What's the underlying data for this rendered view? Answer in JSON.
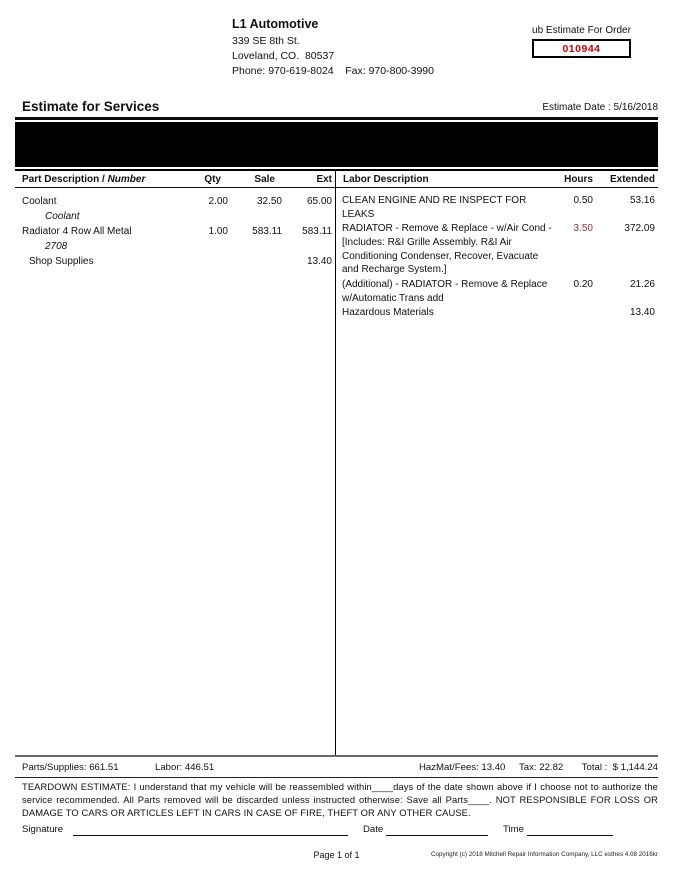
{
  "shop": {
    "name": "L1 Automotive",
    "address_line1": "339 SE 8th St.",
    "address_line2": "Loveland, CO.  80537",
    "phone_fax": "Phone: 970-619-8024    Fax: 970-800-3990"
  },
  "order_box": {
    "label": "ub Estimate For Order",
    "number": "010944",
    "number_color": "#cc0000"
  },
  "header": {
    "title": "Estimate for Services",
    "estimate_date": "Estimate Date : 5/16/2018"
  },
  "parts": {
    "headers": {
      "description_main": "Part Description / ",
      "description_italic": "Number",
      "qty": "Qty",
      "sale": "Sale",
      "ext": "Ext"
    },
    "rows": [
      {
        "description": "Coolant",
        "qty": "2.00",
        "sale": "32.50",
        "ext": "65.00"
      },
      {
        "description": "Coolant"
      },
      {
        "description": "Radiator 4 Row All Metal",
        "qty": "1.00",
        "sale": "583.11",
        "ext": "583.11"
      },
      {
        "description": "2708"
      },
      {
        "description": "Shop Supplies",
        "ext": "13.40"
      }
    ]
  },
  "labor": {
    "headers": {
      "description": "Labor Description",
      "hours": "Hours",
      "extended": "Extended"
    },
    "rows": [
      {
        "description": "CLEAN ENGINE AND RE INSPECT FOR\nLEAKS",
        "hours": "0.50",
        "extended": "53.16"
      },
      {
        "description": "RADIATOR - Remove & Replace - w/Air Cond -\n[Includes: R&I Grille Assembly. R&I Air\nConditioning Condenser, Recover, Evacuate\nand Recharge System.]",
        "hours": "3.50",
        "extended": "372.09",
        "hours_color": "#993333"
      },
      {
        "description": "(Additional) - RADIATOR - Remove & Replace\nw/Automatic Trans add",
        "hours": "0.20",
        "extended": "21.26"
      },
      {
        "description": "Hazardous Materials",
        "extended": "13.40"
      }
    ]
  },
  "totals": {
    "parts_supplies": "Parts/Supplies: 661.51",
    "labor": "Labor: 446.51",
    "hazmat_fees": "HazMat/Fees: 13.40",
    "tax": "Tax: 22.82",
    "total": "Total :  $ 1,144.24"
  },
  "teardown_text": "TEARDOWN ESTIMATE: I understand that my vehicle will be reassembled within____days of the date shown above if I choose not to authorize the service recommended. All Parts removed will be discarded unless instructed otherwise:  Save all Parts____.  NOT RESPONSIBLE FOR LOSS OR DAMAGE TO CARS OR ARTICLES LEFT IN CARS IN CASE OF FIRE, THEFT OR ANY OTHER CAUSE.",
  "signature_row": {
    "signature": "Signature",
    "date": "Date",
    "time": "Time"
  },
  "footer": {
    "page": "Page 1 of 1",
    "copyright": "Copyright (c) 2018 Mitchell Repair Information Company, LLC  esthes 4.08 2016kr"
  }
}
